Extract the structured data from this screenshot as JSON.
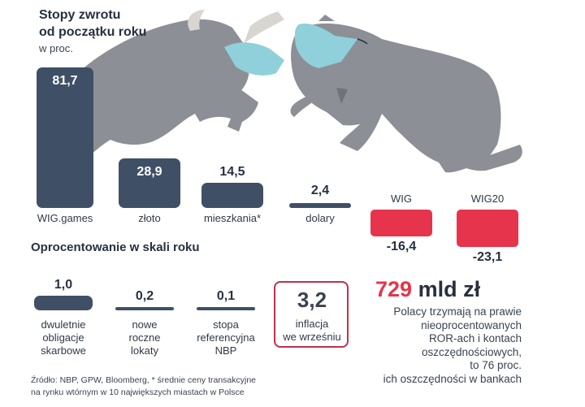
{
  "title_line1": "Stopy zwrotu",
  "title_line2": "od początku roku",
  "unit": "w proc.",
  "section2": "Oprocentowanie w skali roku",
  "big_value": "729",
  "big_unit": "mld zł",
  "note_lines": [
    "Polacy trzymają na prawie",
    "nieoprocentowanych",
    "ROR-ach i kontach",
    "oszczędnościowych,",
    "to 76 proc.",
    "ich oszczędności w bankach"
  ],
  "source_line1": "Źródło: NBP, GPW, Bloomberg, * średnie ceny transakcyjne",
  "source_line2": "na rynku wtórnym w 10 największych miastach w Polsce",
  "colors": {
    "bar": "#3f5066",
    "negative": "#e5344b",
    "animal": "#8c8f95",
    "mask": "#8fd0da"
  },
  "chart_data": [
    {
      "type": "bar",
      "title": "Stopy zwrotu od początku roku",
      "unit": "w proc.",
      "categories": [
        "WIG.games",
        "złoto",
        "mieszkania*",
        "dolary",
        "WIG",
        "WIG20"
      ],
      "values": [
        81.7,
        28.9,
        14.5,
        2.4,
        -16.4,
        -23.1
      ],
      "labels": [
        "81,7",
        "28,9",
        "14,5",
        "2,4",
        "-16,4",
        "-23,1"
      ]
    },
    {
      "type": "bar",
      "title": "Oprocentowanie w skali roku",
      "categories": [
        [
          "dwuletnie",
          "obligacje",
          "skarbowe"
        ],
        [
          "nowe",
          "roczne",
          "lokaty"
        ],
        [
          "stopa",
          "referencyjna",
          "NBP"
        ],
        [
          "inflacja",
          "we wrześniu"
        ]
      ],
      "values": [
        1.0,
        0.2,
        0.1,
        3.2
      ],
      "labels": [
        "1,0",
        "0,2",
        "0,1",
        "3,2"
      ]
    }
  ]
}
